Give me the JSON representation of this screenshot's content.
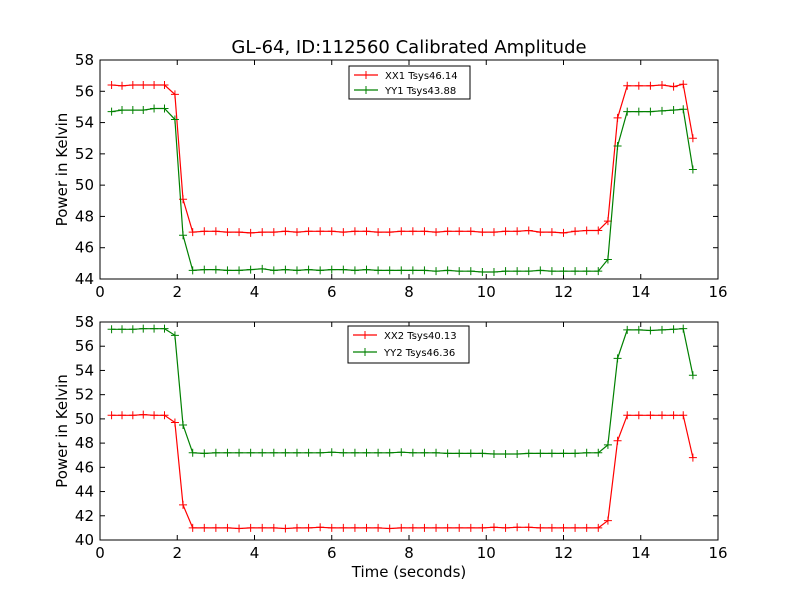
{
  "chart_data": [
    {
      "type": "line",
      "title": "GL-64, ID:112560 Calibrated Amplitude",
      "xlabel": "",
      "ylabel": "Power in Kelvin",
      "xlim": [
        0,
        16
      ],
      "ylim": [
        44,
        58
      ],
      "xticks": [
        0,
        2,
        4,
        6,
        8,
        10,
        12,
        14,
        16
      ],
      "yticks": [
        44,
        46,
        48,
        50,
        52,
        54,
        56,
        58
      ],
      "grid": false,
      "legend_position": "top-center",
      "x": [
        0.3,
        0.57,
        0.85,
        1.12,
        1.4,
        1.67,
        1.94,
        2.15,
        2.4,
        2.7,
        3.0,
        3.3,
        3.6,
        3.9,
        4.2,
        4.5,
        4.8,
        5.1,
        5.4,
        5.7,
        6.0,
        6.3,
        6.6,
        6.9,
        7.2,
        7.5,
        7.8,
        8.1,
        8.4,
        8.7,
        9.0,
        9.3,
        9.6,
        9.9,
        10.2,
        10.5,
        10.8,
        11.1,
        11.4,
        11.7,
        12.0,
        12.3,
        12.6,
        12.9,
        13.15,
        13.4,
        13.65,
        13.95,
        14.25,
        14.55,
        14.85,
        15.1,
        15.35
      ],
      "series": [
        {
          "name": "XX1 Tsys46.14",
          "color": "#ff0000",
          "values": [
            56.4,
            56.35,
            56.4,
            56.4,
            56.4,
            56.4,
            55.8,
            49.1,
            47.0,
            47.05,
            47.05,
            47.0,
            47.0,
            46.95,
            47.0,
            47.0,
            47.05,
            47.0,
            47.05,
            47.05,
            47.05,
            47.0,
            47.05,
            47.05,
            47.0,
            47.0,
            47.05,
            47.05,
            47.05,
            47.0,
            47.05,
            47.05,
            47.05,
            47.0,
            47.0,
            47.05,
            47.05,
            47.1,
            47.0,
            47.0,
            46.95,
            47.05,
            47.1,
            47.1,
            47.7,
            54.3,
            56.35,
            56.35,
            56.35,
            56.4,
            56.3,
            56.45,
            53.0
          ]
        },
        {
          "name": "YY1 Tsys43.88",
          "color": "#008000",
          "values": [
            54.7,
            54.8,
            54.8,
            54.8,
            54.9,
            54.9,
            54.2,
            46.8,
            44.55,
            44.6,
            44.6,
            44.55,
            44.55,
            44.6,
            44.65,
            44.55,
            44.6,
            44.55,
            44.6,
            44.55,
            44.6,
            44.6,
            44.55,
            44.6,
            44.55,
            44.55,
            44.55,
            44.55,
            44.55,
            44.5,
            44.55,
            44.5,
            44.5,
            44.45,
            44.45,
            44.5,
            44.5,
            44.5,
            44.55,
            44.5,
            44.5,
            44.5,
            44.5,
            44.5,
            45.25,
            52.5,
            54.7,
            54.7,
            54.7,
            54.75,
            54.8,
            54.85,
            51.0
          ]
        }
      ]
    },
    {
      "type": "line",
      "title": "",
      "xlabel": "Time (seconds)",
      "ylabel": "Power in Kelvin",
      "xlim": [
        0,
        16
      ],
      "ylim": [
        40,
        58
      ],
      "xticks": [
        0,
        2,
        4,
        6,
        8,
        10,
        12,
        14,
        16
      ],
      "yticks": [
        40,
        42,
        44,
        46,
        48,
        50,
        52,
        54,
        56,
        58
      ],
      "grid": false,
      "legend_position": "top-center",
      "x": [
        0.3,
        0.57,
        0.85,
        1.12,
        1.4,
        1.67,
        1.94,
        2.15,
        2.4,
        2.7,
        3.0,
        3.3,
        3.6,
        3.9,
        4.2,
        4.5,
        4.8,
        5.1,
        5.4,
        5.7,
        6.0,
        6.3,
        6.6,
        6.9,
        7.2,
        7.5,
        7.8,
        8.1,
        8.4,
        8.7,
        9.0,
        9.3,
        9.6,
        9.9,
        10.2,
        10.5,
        10.8,
        11.1,
        11.4,
        11.7,
        12.0,
        12.3,
        12.6,
        12.9,
        13.15,
        13.4,
        13.65,
        13.95,
        14.25,
        14.55,
        14.85,
        15.1,
        15.35
      ],
      "series": [
        {
          "name": "XX2 Tsys40.13",
          "color": "#ff0000",
          "values": [
            50.3,
            50.3,
            50.3,
            50.35,
            50.3,
            50.3,
            49.7,
            42.9,
            41.0,
            41.0,
            41.0,
            41.0,
            40.95,
            41.0,
            41.0,
            41.0,
            40.95,
            41.0,
            41.0,
            41.05,
            41.0,
            41.0,
            41.0,
            41.0,
            41.0,
            40.95,
            41.0,
            41.0,
            41.0,
            41.0,
            41.0,
            41.0,
            41.0,
            41.0,
            41.05,
            41.0,
            41.05,
            41.05,
            41.0,
            41.0,
            41.0,
            41.0,
            41.0,
            41.0,
            41.6,
            48.2,
            50.3,
            50.3,
            50.3,
            50.3,
            50.3,
            50.3,
            46.8
          ]
        },
        {
          "name": "YY2 Tsys46.36",
          "color": "#008000",
          "values": [
            57.4,
            57.4,
            57.4,
            57.45,
            57.45,
            57.45,
            56.9,
            49.5,
            47.2,
            47.15,
            47.2,
            47.2,
            47.2,
            47.2,
            47.2,
            47.2,
            47.2,
            47.2,
            47.2,
            47.2,
            47.25,
            47.2,
            47.2,
            47.2,
            47.2,
            47.2,
            47.25,
            47.2,
            47.2,
            47.2,
            47.15,
            47.15,
            47.15,
            47.15,
            47.1,
            47.1,
            47.1,
            47.15,
            47.15,
            47.15,
            47.15,
            47.15,
            47.2,
            47.2,
            47.85,
            55.0,
            57.35,
            57.35,
            57.3,
            57.35,
            57.4,
            57.45,
            53.6
          ]
        }
      ]
    }
  ]
}
